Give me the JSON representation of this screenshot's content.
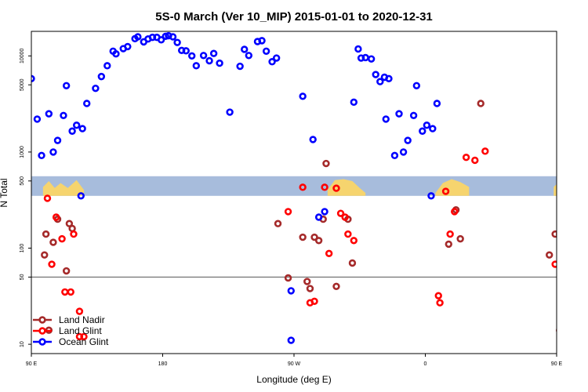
{
  "chart_data": {
    "type": "scatter",
    "title": "5S-0 March (Ver 10_MIP)   2015-01-01 to 2020-12-31",
    "xlabel": "Longitude (deg E)",
    "ylabel": "N Total",
    "y_scale": "log",
    "xlim": [
      90,
      450
    ],
    "ylim": [
      8,
      18000
    ],
    "x_ticks": [
      {
        "value": 90,
        "label": "90 E"
      },
      {
        "value": 180,
        "label": "180"
      },
      {
        "value": 270,
        "label": "90 W"
      },
      {
        "value": 360,
        "label": "0"
      },
      {
        "value": 450,
        "label": "90 E"
      },
      {
        "value": 540,
        "label": "180"
      }
    ],
    "y_ticks": [
      {
        "value": 10,
        "label": "10"
      },
      {
        "value": 50,
        "label": "50"
      },
      {
        "value": 100,
        "label": "100"
      },
      {
        "value": 500,
        "label": "500"
      },
      {
        "value": 1000,
        "label": "1000"
      },
      {
        "value": 5000,
        "label": "5000"
      },
      {
        "value": 10000,
        "label": "10000"
      }
    ],
    "reference_line": 50,
    "land_band": {
      "y_low": 350,
      "y_high": 560
    },
    "legend_position": "bottom-left",
    "colors": {
      "land_nadir": "#a52a2a",
      "land_glint": "#ff0000",
      "ocean_glint": "#0000ff",
      "band": "#a7bcdc",
      "land": "#f6d46e"
    },
    "series": [
      {
        "name": "Land Nadir",
        "color": "#a52a2a",
        "points": [
          [
            99,
            85
          ],
          [
            100,
            140
          ],
          [
            102,
            14
          ],
          [
            105,
            115
          ],
          [
            108,
            200
          ],
          [
            114,
            58
          ],
          [
            116,
            180
          ],
          [
            118,
            160
          ],
          [
            259,
            180
          ],
          [
            266,
            49
          ],
          [
            276,
            130
          ],
          [
            279,
            45
          ],
          [
            281,
            38
          ],
          [
            284,
            130
          ],
          [
            287,
            120
          ],
          [
            290,
            200
          ],
          [
            292,
            760
          ],
          [
            299,
            40
          ],
          [
            307,
            200
          ],
          [
            310,
            70
          ],
          [
            376,
            110
          ],
          [
            381,
            250
          ],
          [
            384,
            125
          ],
          [
            398,
            3200
          ],
          [
            445,
            85
          ],
          [
            449,
            140
          ],
          [
            452,
            14
          ],
          [
            455,
            115
          ],
          [
            458,
            200
          ],
          [
            464,
            58
          ],
          [
            466,
            180
          ],
          [
            468,
            160
          ]
        ]
      },
      {
        "name": "Land Glint",
        "color": "#ff0000",
        "points": [
          [
            101,
            330
          ],
          [
            104,
            68
          ],
          [
            107,
            210
          ],
          [
            111,
            125
          ],
          [
            113,
            35
          ],
          [
            117,
            35
          ],
          [
            119,
            140
          ],
          [
            123,
            22
          ],
          [
            123,
            12
          ],
          [
            126,
            12
          ],
          [
            266,
            240
          ],
          [
            276,
            430
          ],
          [
            281,
            27
          ],
          [
            284,
            28
          ],
          [
            291,
            430
          ],
          [
            294,
            88
          ],
          [
            299,
            420
          ],
          [
            302,
            230
          ],
          [
            305,
            210
          ],
          [
            307,
            140
          ],
          [
            311,
            120
          ],
          [
            369,
            32
          ],
          [
            370,
            27
          ],
          [
            374,
            390
          ],
          [
            377,
            140
          ],
          [
            380,
            240
          ],
          [
            388,
            880
          ],
          [
            394,
            820
          ],
          [
            401,
            1020
          ],
          [
            449,
            68
          ],
          [
            452,
            140
          ],
          [
            456,
            210
          ],
          [
            459,
            120
          ],
          [
            461,
            220
          ],
          [
            463,
            35
          ],
          [
            466,
            35
          ],
          [
            469,
            130
          ],
          [
            472,
            22
          ],
          [
            475,
            12
          ],
          [
            477,
            12
          ]
        ]
      },
      {
        "name": "Ocean Glint",
        "color": "#0000ff",
        "points": [
          [
            90,
            5800
          ],
          [
            94,
            2200
          ],
          [
            97,
            920
          ],
          [
            102,
            2500
          ],
          [
            105,
            1000
          ],
          [
            108,
            1320
          ],
          [
            112,
            2400
          ],
          [
            114,
            4900
          ],
          [
            118,
            1650
          ],
          [
            121,
            1900
          ],
          [
            124,
            350
          ],
          [
            125,
            1750
          ],
          [
            128,
            3200
          ],
          [
            134,
            4600
          ],
          [
            138,
            6100
          ],
          [
            142,
            7900
          ],
          [
            146,
            11200
          ],
          [
            148,
            10500
          ],
          [
            153,
            11900
          ],
          [
            156,
            12500
          ],
          [
            161,
            15100
          ],
          [
            163,
            15800
          ],
          [
            167,
            14000
          ],
          [
            170,
            15000
          ],
          [
            173,
            15600
          ],
          [
            176,
            15600
          ],
          [
            179,
            14700
          ],
          [
            182,
            16000
          ],
          [
            184,
            16200
          ],
          [
            187,
            15800
          ],
          [
            190,
            13800
          ],
          [
            193,
            11400
          ],
          [
            196,
            11300
          ],
          [
            200,
            10000
          ],
          [
            203,
            7900
          ],
          [
            208,
            10100
          ],
          [
            212,
            8900
          ],
          [
            215,
            10600
          ],
          [
            219,
            8400
          ],
          [
            226,
            2600
          ],
          [
            233,
            7800
          ],
          [
            236,
            11700
          ],
          [
            239,
            10100
          ],
          [
            245,
            14100
          ],
          [
            248,
            14400
          ],
          [
            251,
            11200
          ],
          [
            255,
            8700
          ],
          [
            258,
            9500
          ],
          [
            268,
            36
          ],
          [
            268,
            11
          ],
          [
            276,
            3800
          ],
          [
            283,
            1350
          ],
          [
            287,
            210
          ],
          [
            291,
            240
          ],
          [
            311,
            3300
          ],
          [
            314,
            11800
          ],
          [
            316,
            9500
          ],
          [
            319,
            9600
          ],
          [
            323,
            9300
          ],
          [
            326,
            6400
          ],
          [
            329,
            5400
          ],
          [
            332,
            6000
          ],
          [
            333,
            2200
          ],
          [
            335,
            5800
          ],
          [
            339,
            920
          ],
          [
            342,
            2500
          ],
          [
            345,
            1000
          ],
          [
            348,
            1320
          ],
          [
            352,
            2400
          ],
          [
            354,
            4900
          ],
          [
            358,
            1650
          ],
          [
            361,
            1900
          ],
          [
            364,
            350
          ],
          [
            365,
            1750
          ],
          [
            368,
            3200
          ]
        ]
      }
    ]
  }
}
